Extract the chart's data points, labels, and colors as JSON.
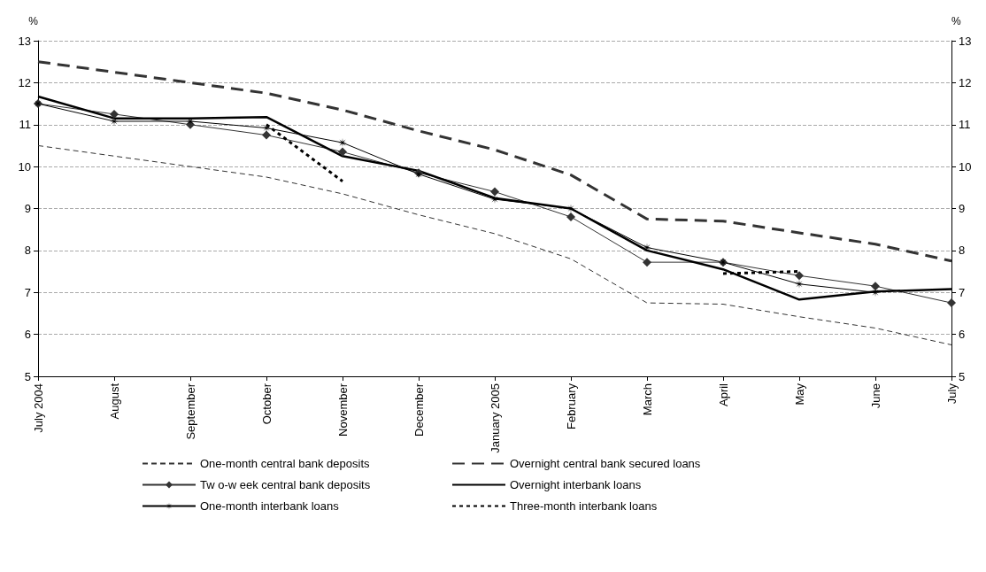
{
  "chart_data": {
    "type": "line",
    "ylabel": "%",
    "y2label": "%",
    "categories": [
      "July 2004",
      "August",
      "September",
      "October",
      "November",
      "December",
      "January 2005",
      "February",
      "March",
      "April",
      "May",
      "June",
      "July"
    ],
    "ylim": [
      5,
      13
    ],
    "yticks": [
      5,
      6,
      7,
      8,
      9,
      10,
      11,
      12,
      13
    ],
    "y2lim": [
      5,
      13
    ],
    "y2ticks": [
      5,
      6,
      7,
      8,
      9,
      10,
      11,
      12,
      13
    ],
    "grid": "y",
    "legend": "bottom",
    "series": [
      {
        "name": "One-month central bank deposits",
        "color": "#333333",
        "line_style": "dashed",
        "marker": "none",
        "values": [
          10.5,
          10.25,
          10.0,
          9.75,
          9.35,
          8.85,
          8.4,
          7.8,
          6.75,
          6.72,
          6.42,
          6.15,
          5.75
        ]
      },
      {
        "name": "Overnight central bank secured loans",
        "color": "#333333",
        "line_style": "dashed",
        "marker": "none",
        "values": [
          12.5,
          12.25,
          12.0,
          11.75,
          11.35,
          10.85,
          10.4,
          9.8,
          8.75,
          8.7,
          8.42,
          8.15,
          7.75
        ]
      },
      {
        "name": "Tw o-w eek central bank deposits",
        "color": "#333333",
        "line_style": "solid",
        "marker": "diamond",
        "values": [
          11.5,
          11.25,
          11.0,
          10.75,
          10.35,
          9.85,
          9.4,
          8.8,
          7.72,
          7.72,
          7.4,
          7.15,
          6.75
        ]
      },
      {
        "name": "Overnight interbank loans",
        "color": "#000000",
        "line_style": "solid",
        "marker": "none",
        "values": [
          11.67,
          11.15,
          11.15,
          11.18,
          10.25,
          9.9,
          9.25,
          9.0,
          8.0,
          7.55,
          6.83,
          7.02,
          7.08
        ]
      },
      {
        "name": "One-month interbank loans",
        "color": "#000000",
        "line_style": "solid",
        "marker": "star",
        "values": [
          11.5,
          11.08,
          11.08,
          10.92,
          10.57,
          9.82,
          9.22,
          9.0,
          8.07,
          7.72,
          7.2,
          7.0,
          null
        ]
      },
      {
        "name": "Three-month interbank loans",
        "color": "#000000",
        "line_style": "dotted",
        "marker": "none",
        "values": [
          null,
          null,
          null,
          11.0,
          9.65,
          null,
          null,
          null,
          null,
          7.45,
          7.5,
          null,
          null
        ]
      }
    ]
  }
}
